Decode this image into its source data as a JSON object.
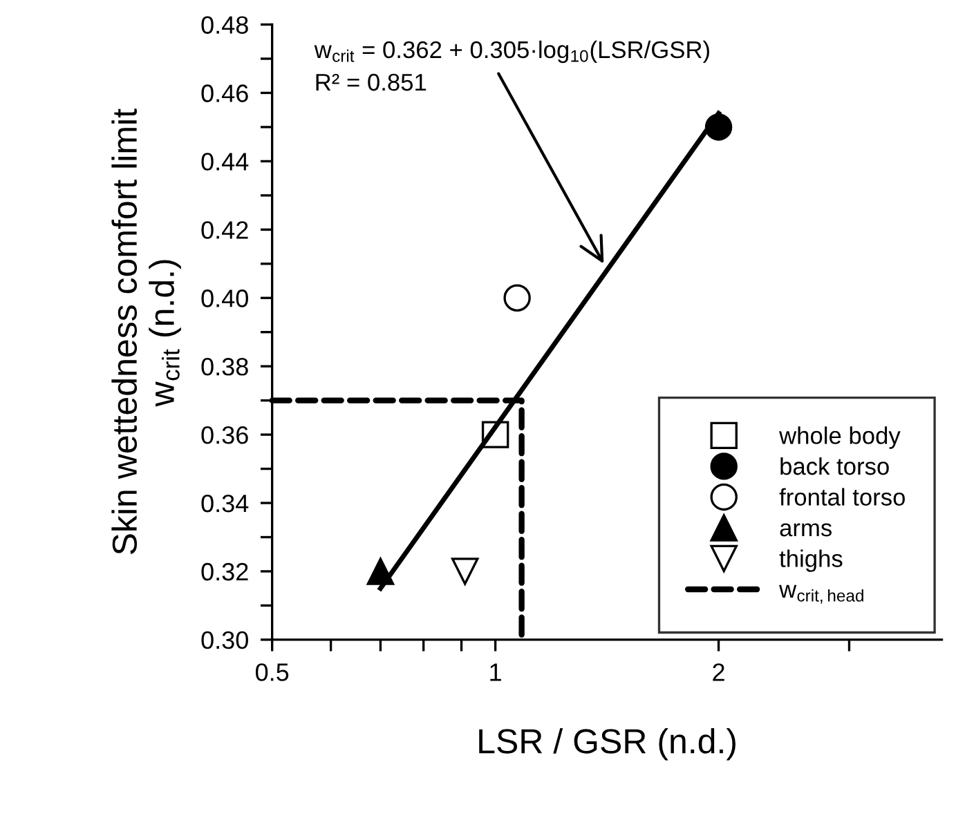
{
  "chart_data": {
    "type": "scatter",
    "xlabel": "LSR / GSR (n.d.)",
    "ylabel": "Skin wettedness comfort limit\nw$_{crit}$ (n.d.)",
    "log": "x",
    "xlim": [
      0.5,
      4
    ],
    "xticks": [
      0.5,
      {
        "value": 0.6,
        "label": null
      },
      {
        "value": 0.7,
        "label": null
      },
      {
        "value": 0.8,
        "label": null
      },
      {
        "value": 0.9,
        "label": null
      },
      1,
      2,
      {
        "value": 3,
        "label": null
      }
    ],
    "ylim": [
      0.3,
      0.48
    ],
    "yticks": [
      {
        "value": 0.3,
        "label": "0.30"
      },
      {
        "value": 0.31,
        "label": null
      },
      {
        "value": 0.32,
        "label": "0.32"
      },
      {
        "value": 0.33,
        "label": null
      },
      {
        "value": 0.34,
        "label": "0.34"
      },
      {
        "value": 0.35,
        "label": null
      },
      {
        "value": 0.36,
        "label": "0.36"
      },
      {
        "value": 0.37,
        "label": null
      },
      {
        "value": 0.38,
        "label": "0.38"
      },
      {
        "value": 0.39,
        "label": null
      },
      {
        "value": 0.4,
        "label": "0.40"
      },
      {
        "value": 0.41,
        "label": null
      },
      {
        "value": 0.42,
        "label": "0.42"
      },
      {
        "value": 0.43,
        "label": null
      },
      {
        "value": 0.44,
        "label": "0.44"
      },
      {
        "value": 0.45,
        "label": null
      },
      {
        "value": 0.46,
        "label": "0.46"
      },
      {
        "value": 0.47,
        "label": null
      },
      {
        "value": 0.48,
        "label": "0.48"
      }
    ],
    "grid": false,
    "legend": "lower right",
    "series": [
      {
        "type": "line",
        "x": [
          0.7,
          2
        ],
        "values": [
          0.315,
          0.454
        ],
        "color": "#000000",
        "line_style": "solid",
        "marker": "none"
      },
      {
        "name": "whole body",
        "x": [
          1.0
        ],
        "values": [
          0.36
        ],
        "color": "#000000",
        "marker": "square_open"
      },
      {
        "name": "back torso",
        "x": [
          2.0
        ],
        "values": [
          0.45
        ],
        "color": "#000000",
        "marker": "circle"
      },
      {
        "name": "frontal torso",
        "x": [
          1.07
        ],
        "values": [
          0.4
        ],
        "color": "#000000",
        "marker": "circle_open"
      },
      {
        "name": "arms",
        "x": [
          0.7
        ],
        "values": [
          0.32
        ],
        "color": "#000000",
        "marker": "triangle"
      },
      {
        "name": "thighs",
        "x": [
          0.91
        ],
        "values": [
          0.32
        ],
        "color": "#000000",
        "marker": "triangle_down_open"
      },
      {
        "name": "w$_{crit,head}$",
        "type": "line",
        "x": [
          0.5,
          1.085,
          1.085
        ],
        "values": [
          0.37,
          0.37,
          0.3
        ],
        "color": "#000000",
        "line_style": "dashed",
        "marker": "none"
      }
    ],
    "annotations": [
      {
        "text": "w$_{crit}$ = 0.362 + 0.305·log$_{10}$(LSR/GSR)",
        "x": 1.4,
        "y": 0.41
      },
      "R² = 0.851"
    ]
  }
}
